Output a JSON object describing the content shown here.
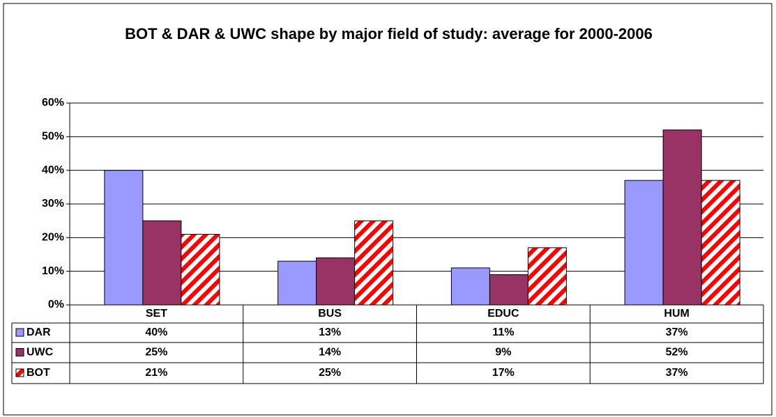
{
  "chart_data": {
    "type": "bar",
    "title": "BOT & DAR & UWC shape by major field of study: average for 2000-2006",
    "categories": [
      "SET",
      "BUS",
      "EDUC",
      "HUM"
    ],
    "series": [
      {
        "name": "DAR",
        "color": "#9999ff",
        "values": [
          40,
          13,
          11,
          37
        ],
        "value_labels": [
          "40%",
          "13%",
          "11%",
          "37%"
        ]
      },
      {
        "name": "UWC",
        "color": "#993366",
        "values": [
          25,
          14,
          9,
          52
        ],
        "value_labels": [
          "25%",
          "14%",
          "9%",
          "52%"
        ]
      },
      {
        "name": "BOT",
        "color": "#ff0000",
        "pattern": "diagonal-hatch",
        "values": [
          21,
          25,
          17,
          37
        ],
        "value_labels": [
          "21%",
          "25%",
          "17%",
          "37%"
        ]
      }
    ],
    "ylim": [
      0,
      60
    ],
    "yticks": [
      {
        "value": 0,
        "label": "0%"
      },
      {
        "value": 10,
        "label": "10%"
      },
      {
        "value": 20,
        "label": "20%"
      },
      {
        "value": 30,
        "label": "30%"
      },
      {
        "value": 40,
        "label": "40%"
      },
      {
        "value": 50,
        "label": "50%"
      },
      {
        "value": 60,
        "label": "60%"
      }
    ],
    "grid": true,
    "data_table": true
  }
}
